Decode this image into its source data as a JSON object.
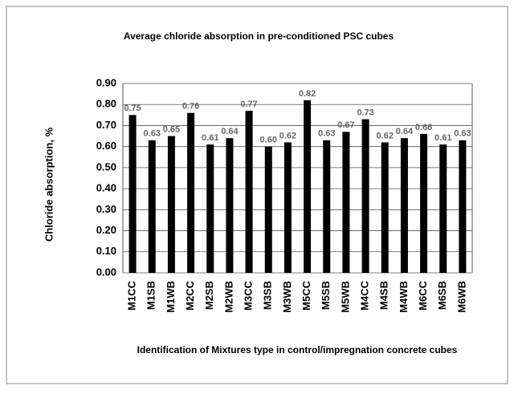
{
  "chart_data": {
    "type": "bar",
    "title": "Average chloride absorption in pre-conditioned PSC cubes",
    "x_label": "Identification of Mixtures type in control/impregnation concrete cubes",
    "y_label": "Chloride absorption, %",
    "categories": [
      "M1CC",
      "M1SB",
      "M1WB",
      "M2CC",
      "M2SB",
      "M2WB",
      "M3CC",
      "M3SB",
      "M3WB",
      "M5CC",
      "M5SB",
      "M5WB",
      "M4CC",
      "M4SB",
      "M4WB",
      "M6CC",
      "M6SB",
      "M6WB"
    ],
    "values": [
      0.75,
      0.63,
      0.65,
      0.76,
      0.61,
      0.64,
      0.77,
      0.6,
      0.62,
      0.82,
      0.63,
      0.67,
      0.73,
      0.62,
      0.64,
      0.66,
      0.61,
      0.63
    ],
    "value_labels": [
      "0.75",
      "0.63",
      "0.65",
      "0.76",
      "0.61",
      "0.64",
      "0.77",
      "0.60",
      "0.62",
      "0.82",
      "0.63",
      "0.67",
      "0.73",
      "0.62",
      "0.64",
      "0.66",
      "0.61",
      "0.63"
    ],
    "color": "#000000",
    "ylim": [
      0,
      0.9
    ],
    "yticks": [
      {
        "value": 0,
        "label": "0.00"
      },
      {
        "value": 0.1,
        "label": "0.10"
      },
      {
        "value": 0.2,
        "label": "0.20"
      },
      {
        "value": 0.3,
        "label": "0.30"
      },
      {
        "value": 0.4,
        "label": "0.40"
      },
      {
        "value": 0.5,
        "label": "0.50"
      },
      {
        "value": 0.6,
        "label": "0.60"
      },
      {
        "value": 0.7,
        "label": "0.70"
      },
      {
        "value": 0.8,
        "label": "0.80"
      },
      {
        "value": 0.9,
        "label": "0.90"
      }
    ],
    "grid": true
  }
}
